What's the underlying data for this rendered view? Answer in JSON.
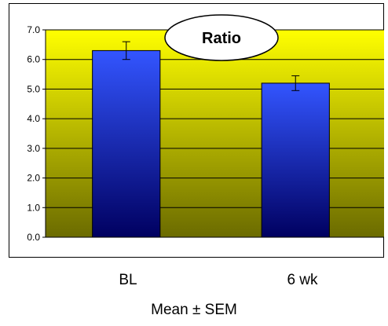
{
  "chart_data": {
    "type": "bar",
    "title": "Ratio",
    "categories": [
      "BL",
      "6 wk"
    ],
    "values": [
      6.3,
      5.2
    ],
    "errors": [
      0.3,
      0.25
    ],
    "ylim": [
      0,
      7
    ],
    "yticks": [
      "0.0",
      "1.0",
      "2.0",
      "3.0",
      "4.0",
      "5.0",
      "6.0",
      "7.0"
    ],
    "grid": true,
    "caption": "Mean ± SEM",
    "colors": {
      "bar_top": "#3355ff",
      "bar_bottom": "#000060",
      "plot_top": "#ffff00",
      "plot_bottom": "#6b6b00"
    }
  }
}
